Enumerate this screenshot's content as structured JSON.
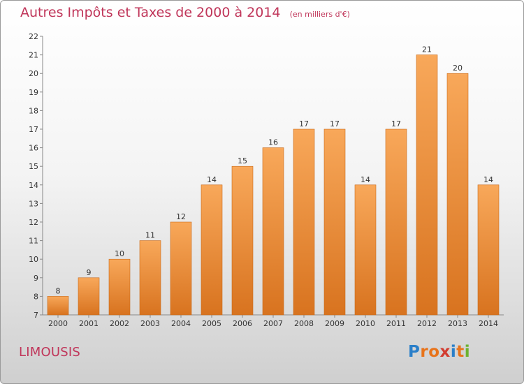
{
  "header": {
    "title": "Autres Impôts et Taxes de 2000 à 2014",
    "unit": "(en milliers d'€)"
  },
  "footer": {
    "commune": "LIMOUSIS",
    "logo_text": "Proxiti",
    "logo_colors": [
      "#2a7fc9",
      "#e8731a",
      "#e8731a",
      "#d23b2f",
      "#2a7fc9",
      "#e8731a",
      "#6cb22f"
    ]
  },
  "colors": {
    "title": "#c0365a",
    "bar_top": "#f8a85a",
    "bar_bottom": "#d8731f",
    "bar_edge": "#c86a1a"
  },
  "chart_data": {
    "type": "bar",
    "categories": [
      "2000",
      "2001",
      "2002",
      "2003",
      "2004",
      "2005",
      "2006",
      "2007",
      "2008",
      "2009",
      "2010",
      "2011",
      "2012",
      "2013",
      "2014"
    ],
    "values": [
      8,
      9,
      10,
      11,
      12,
      14,
      15,
      16,
      17,
      17,
      14,
      17,
      21,
      20,
      14
    ],
    "data_labels": [
      "8",
      "9",
      "10",
      "11",
      "12",
      "14",
      "15",
      "16",
      "17",
      "17",
      "14",
      "17",
      "21",
      "20",
      "14"
    ],
    "title": "Autres Impôts et Taxes de 2000 à 2014",
    "xlabel": "",
    "ylabel": "",
    "ylim": [
      7,
      22
    ],
    "yticks": [
      7,
      8,
      9,
      10,
      11,
      12,
      13,
      14,
      15,
      16,
      17,
      18,
      19,
      20,
      21,
      22
    ],
    "grid": false,
    "legend": "none"
  }
}
